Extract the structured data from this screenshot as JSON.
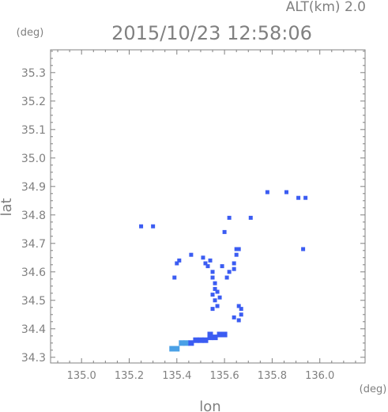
{
  "header": {
    "alt_label": "ALT(km) 2.0",
    "datetime": "2015/10/23 12:58:06"
  },
  "chart_data": {
    "type": "scatter",
    "title": "2015/10/23 12:58:06",
    "xlabel": "lon",
    "ylabel": "lat",
    "x_unit": "(deg)",
    "y_unit": "(deg)",
    "xlim": [
      134.87,
      136.19
    ],
    "ylim": [
      34.28,
      35.38
    ],
    "grid": false,
    "x_ticks": [
      "135.0",
      "135.2",
      "135.4",
      "135.6",
      "135.8",
      "136.0"
    ],
    "y_ticks": [
      "34.3",
      "34.4",
      "34.5",
      "34.6",
      "34.7",
      "34.8",
      "34.9",
      "35.0",
      "35.1",
      "35.2",
      "35.3"
    ],
    "colors": {
      "echo": "#3b5cf2",
      "echo_light": "#4aa0e6",
      "axis": "#808080"
    },
    "echo_cells": [
      {
        "lon": 135.25,
        "lat": 34.76
      },
      {
        "lon": 135.3,
        "lat": 34.76
      },
      {
        "lon": 135.4,
        "lat": 34.63
      },
      {
        "lon": 135.41,
        "lat": 34.64
      },
      {
        "lon": 135.46,
        "lat": 34.66
      },
      {
        "lon": 135.51,
        "lat": 34.65
      },
      {
        "lon": 135.52,
        "lat": 34.63
      },
      {
        "lon": 135.53,
        "lat": 34.62
      },
      {
        "lon": 135.54,
        "lat": 34.64
      },
      {
        "lon": 135.55,
        "lat": 34.6
      },
      {
        "lon": 135.55,
        "lat": 34.58
      },
      {
        "lon": 135.56,
        "lat": 34.56
      },
      {
        "lon": 135.56,
        "lat": 34.54
      },
      {
        "lon": 135.55,
        "lat": 34.52
      },
      {
        "lon": 135.57,
        "lat": 34.53
      },
      {
        "lon": 135.56,
        "lat": 34.5
      },
      {
        "lon": 135.57,
        "lat": 34.48
      },
      {
        "lon": 135.55,
        "lat": 34.47
      },
      {
        "lon": 135.59,
        "lat": 34.62
      },
      {
        "lon": 135.61,
        "lat": 34.58
      },
      {
        "lon": 135.62,
        "lat": 34.6
      },
      {
        "lon": 135.64,
        "lat": 34.61
      },
      {
        "lon": 135.65,
        "lat": 34.66
      },
      {
        "lon": 135.65,
        "lat": 34.68
      },
      {
        "lon": 135.66,
        "lat": 34.68
      },
      {
        "lon": 135.64,
        "lat": 34.63
      },
      {
        "lon": 135.58,
        "lat": 34.51
      },
      {
        "lon": 135.66,
        "lat": 34.48
      },
      {
        "lon": 135.67,
        "lat": 34.47
      },
      {
        "lon": 135.67,
        "lat": 34.45
      },
      {
        "lon": 135.66,
        "lat": 34.43
      },
      {
        "lon": 135.64,
        "lat": 34.44
      },
      {
        "lon": 135.39,
        "lat": 34.58
      },
      {
        "lon": 135.6,
        "lat": 34.74
      },
      {
        "lon": 135.62,
        "lat": 34.79
      },
      {
        "lon": 135.71,
        "lat": 34.79
      },
      {
        "lon": 135.78,
        "lat": 34.88
      },
      {
        "lon": 135.86,
        "lat": 34.88
      },
      {
        "lon": 135.91,
        "lat": 34.86
      },
      {
        "lon": 135.94,
        "lat": 34.86
      },
      {
        "lon": 135.93,
        "lat": 34.68
      },
      {
        "lon": 135.38,
        "lat": 34.33
      },
      {
        "lon": 135.4,
        "lat": 34.33
      },
      {
        "lon": 135.42,
        "lat": 34.35
      },
      {
        "lon": 135.44,
        "lat": 34.35
      },
      {
        "lon": 135.46,
        "lat": 34.35
      },
      {
        "lon": 135.48,
        "lat": 34.36
      },
      {
        "lon": 135.5,
        "lat": 34.36
      },
      {
        "lon": 135.52,
        "lat": 34.36
      },
      {
        "lon": 135.54,
        "lat": 34.37
      },
      {
        "lon": 135.56,
        "lat": 34.37
      },
      {
        "lon": 135.58,
        "lat": 34.38
      },
      {
        "lon": 135.6,
        "lat": 34.38
      },
      {
        "lon": 135.54,
        "lat": 34.38
      }
    ]
  }
}
